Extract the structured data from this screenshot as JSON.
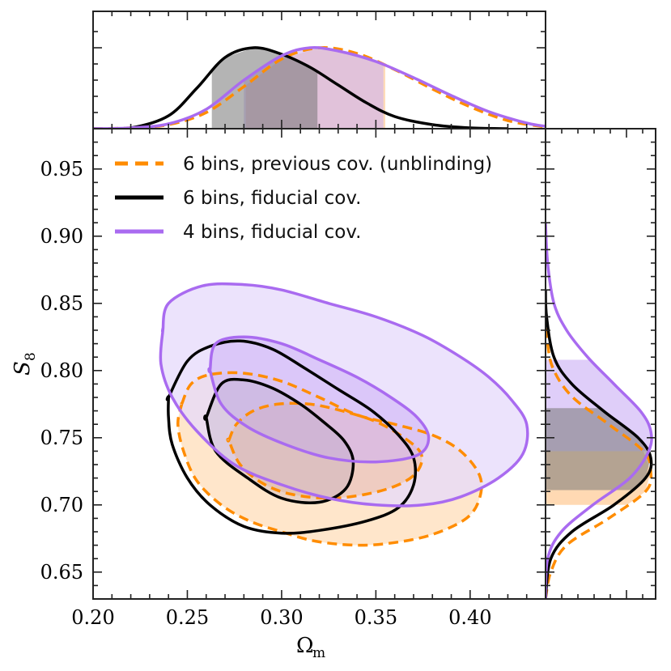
{
  "chart_data": {
    "type": "contour",
    "title": "",
    "xlabel": "Ω",
    "xlabel_sub": "m",
    "ylabel": "S",
    "ylabel_sub": "8",
    "xlim": [
      0.2,
      0.44
    ],
    "ylim": [
      0.63,
      0.98
    ],
    "x_ticks": [
      "0.20",
      "0.25",
      "0.30",
      "0.35",
      "0.40"
    ],
    "y_ticks": [
      "0.65",
      "0.70",
      "0.75",
      "0.80",
      "0.85",
      "0.90",
      "0.95"
    ],
    "legend_position": "top-left",
    "series": [
      {
        "name": "6 bins, previous cov. (unblinding)",
        "key": "prev",
        "color": "#ff8c00",
        "fill": "#ffe2c2",
        "dashed": true,
        "mean_omega_m": 0.31,
        "mean_s8": 0.738,
        "omega_m_interval": [
          0.281,
          0.355
        ],
        "s8_interval": [
          0.7,
          0.74
        ],
        "contour68": [
          [
            0.272,
            0.748
          ],
          [
            0.276,
            0.76
          ],
          [
            0.285,
            0.77
          ],
          [
            0.298,
            0.775
          ],
          [
            0.315,
            0.775
          ],
          [
            0.332,
            0.77
          ],
          [
            0.35,
            0.762
          ],
          [
            0.365,
            0.75
          ],
          [
            0.374,
            0.738
          ],
          [
            0.372,
            0.725
          ],
          [
            0.362,
            0.715
          ],
          [
            0.345,
            0.708
          ],
          [
            0.325,
            0.705
          ],
          [
            0.305,
            0.708
          ],
          [
            0.29,
            0.716
          ],
          [
            0.278,
            0.73
          ],
          [
            0.272,
            0.748
          ]
        ],
        "contour95": [
          [
            0.247,
            0.775
          ],
          [
            0.252,
            0.79
          ],
          [
            0.262,
            0.797
          ],
          [
            0.28,
            0.798
          ],
          [
            0.3,
            0.792
          ],
          [
            0.32,
            0.78
          ],
          [
            0.34,
            0.767
          ],
          [
            0.36,
            0.76
          ],
          [
            0.38,
            0.752
          ],
          [
            0.395,
            0.74
          ],
          [
            0.405,
            0.722
          ],
          [
            0.405,
            0.705
          ],
          [
            0.398,
            0.69
          ],
          [
            0.38,
            0.678
          ],
          [
            0.36,
            0.672
          ],
          [
            0.34,
            0.67
          ],
          [
            0.318,
            0.673
          ],
          [
            0.3,
            0.68
          ],
          [
            0.283,
            0.688
          ],
          [
            0.268,
            0.7
          ],
          [
            0.255,
            0.718
          ],
          [
            0.248,
            0.74
          ],
          [
            0.245,
            0.76
          ],
          [
            0.247,
            0.775
          ]
        ],
        "marginal_x": [
          [
            0.2,
            0.0
          ],
          [
            0.22,
            0.01
          ],
          [
            0.24,
            0.05
          ],
          [
            0.26,
            0.2
          ],
          [
            0.28,
            0.52
          ],
          [
            0.3,
            0.86
          ],
          [
            0.32,
            1.0
          ],
          [
            0.34,
            0.93
          ],
          [
            0.36,
            0.73
          ],
          [
            0.38,
            0.49
          ],
          [
            0.4,
            0.27
          ],
          [
            0.42,
            0.1
          ],
          [
            0.44,
            0.02
          ]
        ],
        "marginal_y": [
          [
            0.63,
            0.0
          ],
          [
            0.65,
            0.05
          ],
          [
            0.67,
            0.2
          ],
          [
            0.69,
            0.6
          ],
          [
            0.71,
            0.95
          ],
          [
            0.725,
            1.0
          ],
          [
            0.74,
            0.93
          ],
          [
            0.76,
            0.6
          ],
          [
            0.78,
            0.26
          ],
          [
            0.8,
            0.08
          ],
          [
            0.82,
            0.02
          ],
          [
            0.85,
            0.0
          ]
        ]
      },
      {
        "name": "6 bins, fiducial cov.",
        "key": "fid6",
        "color": "#000000",
        "fill": "#a9a9a9",
        "dashed": false,
        "mean_omega_m": 0.288,
        "mean_s8": 0.742,
        "omega_m_interval": [
          0.263,
          0.319
        ],
        "s8_interval": [
          0.711,
          0.772
        ],
        "contour68": [
          [
            0.26,
            0.765
          ],
          [
            0.268,
            0.79
          ],
          [
            0.28,
            0.793
          ],
          [
            0.295,
            0.787
          ],
          [
            0.31,
            0.775
          ],
          [
            0.322,
            0.762
          ],
          [
            0.333,
            0.748
          ],
          [
            0.338,
            0.732
          ],
          [
            0.334,
            0.712
          ],
          [
            0.32,
            0.702
          ],
          [
            0.3,
            0.705
          ],
          [
            0.282,
            0.72
          ],
          [
            0.265,
            0.74
          ],
          [
            0.26,
            0.765
          ]
        ],
        "contour95": [
          [
            0.24,
            0.78
          ],
          [
            0.25,
            0.807
          ],
          [
            0.262,
            0.818
          ],
          [
            0.278,
            0.822
          ],
          [
            0.295,
            0.816
          ],
          [
            0.312,
            0.802
          ],
          [
            0.33,
            0.786
          ],
          [
            0.348,
            0.77
          ],
          [
            0.362,
            0.752
          ],
          [
            0.37,
            0.735
          ],
          [
            0.37,
            0.715
          ],
          [
            0.362,
            0.698
          ],
          [
            0.345,
            0.688
          ],
          [
            0.32,
            0.681
          ],
          [
            0.3,
            0.679
          ],
          [
            0.28,
            0.684
          ],
          [
            0.262,
            0.7
          ],
          [
            0.25,
            0.72
          ],
          [
            0.242,
            0.745
          ],
          [
            0.24,
            0.765
          ],
          [
            0.24,
            0.78
          ]
        ],
        "marginal_x": [
          [
            0.2,
            0.0
          ],
          [
            0.22,
            0.01
          ],
          [
            0.24,
            0.16
          ],
          [
            0.255,
            0.5
          ],
          [
            0.27,
            0.88
          ],
          [
            0.285,
            1.0
          ],
          [
            0.3,
            0.92
          ],
          [
            0.315,
            0.76
          ],
          [
            0.33,
            0.54
          ],
          [
            0.345,
            0.32
          ],
          [
            0.36,
            0.15
          ],
          [
            0.38,
            0.05
          ],
          [
            0.4,
            0.01
          ],
          [
            0.42,
            0.0
          ]
        ],
        "marginal_y": [
          [
            0.63,
            0.0
          ],
          [
            0.66,
            0.05
          ],
          [
            0.68,
            0.25
          ],
          [
            0.7,
            0.65
          ],
          [
            0.72,
            0.95
          ],
          [
            0.735,
            1.0
          ],
          [
            0.75,
            0.88
          ],
          [
            0.77,
            0.55
          ],
          [
            0.79,
            0.25
          ],
          [
            0.81,
            0.08
          ],
          [
            0.84,
            0.01
          ],
          [
            0.86,
            0.0
          ]
        ]
      },
      {
        "name": "4 bins, fiducial cov.",
        "key": "bin4",
        "color": "#a96bf0",
        "fill": "#e6d9fb",
        "dashed": false,
        "mean_omega_m": 0.315,
        "mean_s8": 0.76,
        "omega_m_interval": [
          0.28,
          0.354
        ],
        "s8_interval": [
          0.74,
          0.808
        ],
        "contour68": [
          [
            0.262,
            0.8
          ],
          [
            0.265,
            0.82
          ],
          [
            0.28,
            0.825
          ],
          [
            0.3,
            0.82
          ],
          [
            0.32,
            0.808
          ],
          [
            0.34,
            0.795
          ],
          [
            0.358,
            0.78
          ],
          [
            0.372,
            0.765
          ],
          [
            0.378,
            0.75
          ],
          [
            0.372,
            0.737
          ],
          [
            0.35,
            0.732
          ],
          [
            0.325,
            0.735
          ],
          [
            0.302,
            0.745
          ],
          [
            0.282,
            0.758
          ],
          [
            0.268,
            0.775
          ],
          [
            0.262,
            0.8
          ]
        ],
        "contour95": [
          [
            0.237,
            0.83
          ],
          [
            0.24,
            0.85
          ],
          [
            0.258,
            0.863
          ],
          [
            0.28,
            0.864
          ],
          [
            0.3,
            0.86
          ],
          [
            0.325,
            0.85
          ],
          [
            0.35,
            0.84
          ],
          [
            0.375,
            0.826
          ],
          [
            0.395,
            0.81
          ],
          [
            0.41,
            0.795
          ],
          [
            0.422,
            0.778
          ],
          [
            0.43,
            0.76
          ],
          [
            0.428,
            0.738
          ],
          [
            0.415,
            0.72
          ],
          [
            0.395,
            0.706
          ],
          [
            0.375,
            0.7
          ],
          [
            0.35,
            0.7
          ],
          [
            0.325,
            0.705
          ],
          [
            0.3,
            0.715
          ],
          [
            0.275,
            0.73
          ],
          [
            0.255,
            0.755
          ],
          [
            0.242,
            0.78
          ],
          [
            0.236,
            0.805
          ],
          [
            0.237,
            0.83
          ]
        ],
        "marginal_x": [
          [
            0.2,
            0.0
          ],
          [
            0.22,
            0.01
          ],
          [
            0.24,
            0.06
          ],
          [
            0.26,
            0.24
          ],
          [
            0.28,
            0.6
          ],
          [
            0.3,
            0.9
          ],
          [
            0.315,
            1.0
          ],
          [
            0.33,
            0.96
          ],
          [
            0.35,
            0.83
          ],
          [
            0.37,
            0.63
          ],
          [
            0.39,
            0.41
          ],
          [
            0.41,
            0.21
          ],
          [
            0.43,
            0.07
          ],
          [
            0.44,
            0.03
          ]
        ],
        "marginal_y": [
          [
            0.63,
            0.0
          ],
          [
            0.66,
            0.02
          ],
          [
            0.68,
            0.15
          ],
          [
            0.7,
            0.45
          ],
          [
            0.72,
            0.8
          ],
          [
            0.74,
            0.98
          ],
          [
            0.755,
            1.0
          ],
          [
            0.77,
            0.9
          ],
          [
            0.79,
            0.65
          ],
          [
            0.81,
            0.4
          ],
          [
            0.83,
            0.2
          ],
          [
            0.85,
            0.08
          ],
          [
            0.88,
            0.02
          ],
          [
            0.91,
            0.0
          ]
        ]
      }
    ]
  }
}
